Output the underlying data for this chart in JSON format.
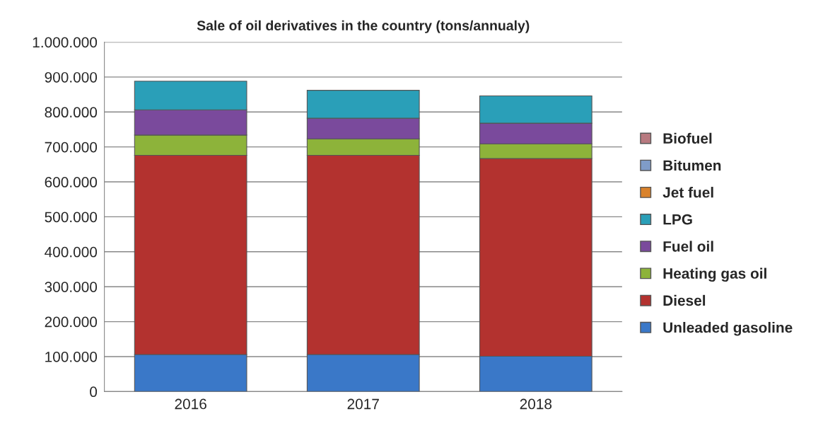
{
  "chart_data": {
    "type": "bar",
    "title": "Sale of oil derivatives in the country (tons/annualy)",
    "stacked": true,
    "categories": [
      "2016",
      "2017",
      "2018"
    ],
    "series": [
      {
        "name": "Unleaded gasoline",
        "color": "#3a78c8",
        "values": [
          106000,
          106000,
          101000
        ]
      },
      {
        "name": "Diesel",
        "color": "#b3322f",
        "values": [
          570000,
          570000,
          566000
        ]
      },
      {
        "name": "Heating gas oil",
        "color": "#8db33a",
        "values": [
          58000,
          47000,
          42000
        ]
      },
      {
        "name": "Fuel oil",
        "color": "#7a4a9c",
        "values": [
          72000,
          59000,
          59000
        ]
      },
      {
        "name": "LPG",
        "color": "#2a9fb8",
        "values": [
          82000,
          80000,
          78000
        ]
      },
      {
        "name": "Jet fuel",
        "color": "#d9822b",
        "values": [
          0,
          0,
          0
        ]
      },
      {
        "name": "Bitumen",
        "color": "#7f9cc8",
        "values": [
          0,
          0,
          0
        ]
      },
      {
        "name": "Biofuel",
        "color": "#b87a80",
        "values": [
          0,
          0,
          0
        ]
      }
    ],
    "ylim": [
      0,
      1000000
    ],
    "yticks": [
      0,
      {
        "value": 100000,
        "label": "100.000"
      },
      {
        "value": 200000,
        "label": "200.000"
      },
      {
        "value": 300000,
        "label": "300.000"
      },
      {
        "value": 400000,
        "label": "400.000"
      },
      {
        "value": 500000,
        "label": "500.000"
      },
      {
        "value": 600000,
        "label": "600.000"
      },
      {
        "value": 700000,
        "label": "700.000"
      },
      {
        "value": 800000,
        "label": "800.000"
      },
      {
        "value": 900000,
        "label": "900.000"
      },
      {
        "value": 1000000,
        "label": "1.000.000"
      }
    ],
    "grid": "y",
    "legend": "right"
  }
}
